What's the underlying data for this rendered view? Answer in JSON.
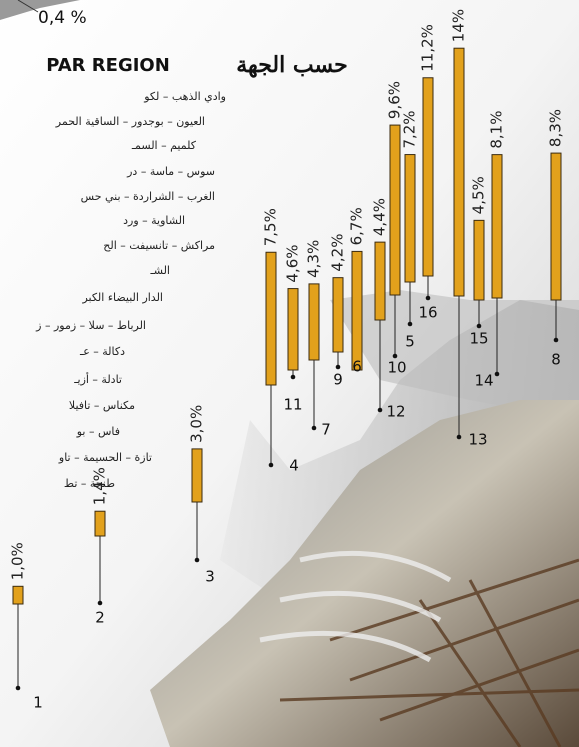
{
  "chart_data": {
    "type": "bar",
    "title": "PAR REGION",
    "title_ar": "حسب الجهة",
    "note": "0,4 %",
    "categories": [
      "1",
      "2",
      "3",
      "4",
      "11",
      "7",
      "9",
      "6",
      "12",
      "10",
      "5",
      "16",
      "13",
      "15",
      "14",
      "8"
    ],
    "values": [
      1.0,
      1.4,
      3.0,
      7.5,
      4.6,
      4.3,
      4.2,
      6.7,
      4.4,
      9.6,
      7.2,
      11.2,
      14,
      4.5,
      8.1,
      8.3
    ],
    "value_labels": [
      "1,0%",
      "1,4%",
      "3,0%",
      "7,5%",
      "4,6%",
      "4,3%",
      "4,2%",
      "6,7%",
      "4,4%",
      "9,6%",
      "7,2%",
      "11,2%",
      "14%",
      "4,5%",
      "8,1%",
      "8,3%"
    ],
    "color": "#e2a11c"
  },
  "region_list": [
    "وادي الذهب – لكو",
    "العيون – بوجدور – الساقية الحمر",
    "كلميم – السمـ",
    "سوس – ماسة – در",
    "الغرب – الشراردة – بني حس",
    "الشاوية – ورد",
    "مراكش – تانسيفت – الح",
    "الشـ",
    "الدار البيضاء الكبر",
    "الرباط – سلا – زمور – ز",
    "دكالة – عـ",
    "تادلة – أزيـ",
    "مكناس – تافيلا",
    "فاس – بو",
    "تازة – الحسيمة – تاو",
    "طنجة – تط"
  ]
}
